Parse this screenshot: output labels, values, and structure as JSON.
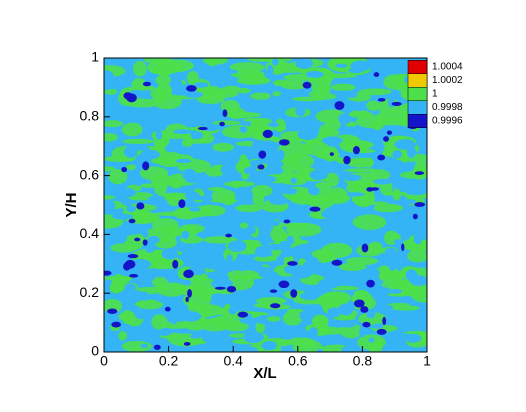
{
  "chart_data": {
    "type": "contour",
    "x_label": "X/L",
    "y_label": "Y/H",
    "xlim": [
      0,
      1
    ],
    "ylim": [
      0,
      1
    ],
    "xticks": [
      0,
      0.2,
      0.4,
      0.6,
      0.8,
      1
    ],
    "yticks": [
      0,
      0.2,
      0.4,
      0.6,
      0.8,
      1
    ],
    "levels": [
      1.0004,
      1.0002,
      1,
      0.9998,
      0.9996
    ],
    "level_colors": [
      "#e00000",
      "#f0c800",
      "#4ee04a",
      "#34b4f4",
      "#1414c8"
    ]
  }
}
